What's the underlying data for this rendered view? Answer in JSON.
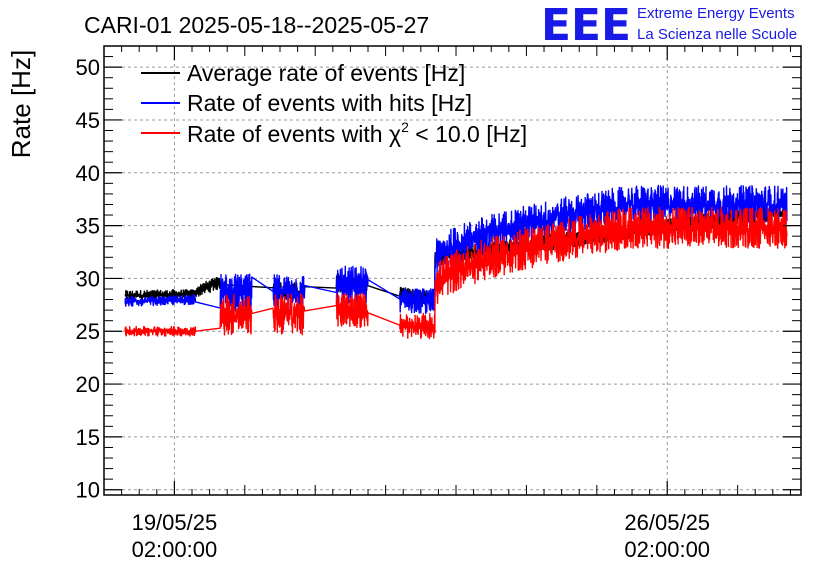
{
  "chart_data": {
    "type": "line",
    "title": "CARI-01 2025-05-18--2025-05-27",
    "ylabel": "Rate [Hz]",
    "xlabel": "",
    "ylim": [
      9.5,
      52
    ],
    "yticks": [
      10,
      15,
      20,
      25,
      30,
      35,
      40,
      45,
      50
    ],
    "ytick_labels": [
      "10",
      "15",
      "20",
      "25",
      "30",
      "35",
      "40",
      "45",
      "50"
    ],
    "xlim_days": [
      -1.0,
      8.9
    ],
    "xticks": [
      {
        "day": 0,
        "date": "19/05/25",
        "time": "02:00:00"
      },
      {
        "day": 7,
        "date": "26/05/25",
        "time": "02:00:00"
      }
    ],
    "grid": true,
    "legend_position": "top-left",
    "series": [
      {
        "name": "Average rate of events [Hz]",
        "color": "#000000",
        "segments": [
          {
            "x": [
              -0.7,
              0.3
            ],
            "base": [
              28.4,
              28.5
            ],
            "amp": 0.3
          },
          {
            "x": [
              0.3,
              0.65
            ],
            "base": [
              28.8,
              29.6
            ],
            "amp": 0.4
          },
          {
            "x": [
              1.4,
              1.85
            ],
            "base": [
              29.0,
              28.6
            ],
            "amp": 0.6
          },
          {
            "x": [
              2.3,
              2.75
            ],
            "base": [
              29.6,
              29.4
            ],
            "amp": 0.6
          },
          {
            "x": [
              3.2,
              3.7
            ],
            "base": [
              28.4,
              28.0
            ],
            "amp": 0.5
          },
          {
            "x": [
              3.7,
              8.7
            ],
            "base": [
              32.0,
              36.4
            ],
            "amp": 0.5
          }
        ]
      },
      {
        "name": "Rate of events with hits [Hz]",
        "color": "#0000ff",
        "segments": [
          {
            "x": [
              -0.7,
              0.3
            ],
            "base": [
              27.8,
              28.0
            ],
            "amp": 0.3
          },
          {
            "x": [
              0.65,
              1.1
            ],
            "base": [
              28.6,
              28.6
            ],
            "amp": 1.2
          },
          {
            "x": [
              1.4,
              1.85
            ],
            "base": [
              28.6,
              28.6
            ],
            "amp": 1.2
          },
          {
            "x": [
              2.3,
              2.75
            ],
            "base": [
              29.4,
              29.4
            ],
            "amp": 1.2
          },
          {
            "x": [
              3.2,
              3.7
            ],
            "base": [
              28.0,
              27.8
            ],
            "amp": 0.8
          },
          {
            "x": [
              3.7,
              8.7
            ],
            "base": [
              31.5,
              37.0
            ],
            "amp": 1.2
          }
        ]
      },
      {
        "name": "Rate of events with χ² < 10.0 [Hz]",
        "color": "#ff0000",
        "segments": [
          {
            "x": [
              -0.7,
              0.3
            ],
            "base": [
              25.0,
              25.0
            ],
            "amp": 0.3
          },
          {
            "x": [
              0.65,
              1.1
            ],
            "base": [
              26.6,
              26.6
            ],
            "amp": 1.3
          },
          {
            "x": [
              1.4,
              1.85
            ],
            "base": [
              26.6,
              26.6
            ],
            "amp": 1.3
          },
          {
            "x": [
              2.3,
              2.75
            ],
            "base": [
              27.0,
              27.0
            ],
            "amp": 1.1
          },
          {
            "x": [
              3.2,
              3.7
            ],
            "base": [
              25.5,
              25.5
            ],
            "amp": 0.8
          },
          {
            "x": [
              3.7,
              8.7
            ],
            "base": [
              29.0,
              34.8
            ],
            "amp": 1.3
          }
        ]
      }
    ]
  },
  "legend": {
    "items": [
      {
        "label_main": "Average rate of events [Hz]",
        "label_suffix": "",
        "color": "#000000"
      },
      {
        "label_main": "Rate of events with hits [Hz]",
        "label_suffix": "",
        "color": "#0000ff"
      },
      {
        "label_main": "Rate of events with ",
        "label_chi": "χ",
        "label_sup": "2",
        "label_suffix": " < 10.0 [Hz]",
        "color": "#ff0000"
      }
    ]
  },
  "logo": {
    "letters": "EEE",
    "line1": "Extreme Energy Events",
    "line2": "La Scienza nelle Scuole",
    "color": "#1a1ae6"
  }
}
